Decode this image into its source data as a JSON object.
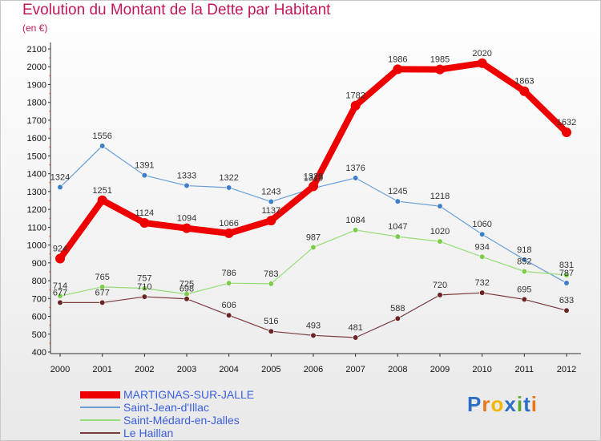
{
  "title": "Evolution du Montant de la Dette par Habitant",
  "subtitle": "(en €)",
  "brand": {
    "text": "Proxiti",
    "letter_colors": [
      "#2d6fc7",
      "#e8791a",
      "#f2b705",
      "#2d6fc7",
      "#5aa832",
      "#2d6fc7",
      "#e8791a"
    ]
  },
  "chart_data": {
    "type": "line",
    "x": [
      "2000",
      "2001",
      "2002",
      "2003",
      "2004",
      "2005",
      "2006",
      "2007",
      "2008",
      "2009",
      "2010",
      "2011",
      "2012"
    ],
    "ylim": [
      400,
      2100
    ],
    "yticks": [
      400,
      500,
      600,
      700,
      800,
      900,
      1000,
      1100,
      1200,
      1300,
      1400,
      1500,
      1600,
      1700,
      1800,
      1900,
      2000,
      2100
    ],
    "grid": false,
    "legend_position": "bottom-left",
    "series": [
      {
        "name": "MARTIGNAS-SUR-JALLE",
        "color": "#ee0000",
        "line_width": 8,
        "marker_radius": 6,
        "values": [
          924,
          1251,
          1124,
          1094,
          1066,
          1137,
          1329,
          1782,
          1986,
          1985,
          2020,
          1863,
          1632
        ]
      },
      {
        "name": "Saint-Jean-d'Illac",
        "color": "#6a9fd8",
        "marker_fill": "#3f7fc9",
        "line_width": 1.2,
        "marker_radius": 3.3,
        "values": [
          1324,
          1556,
          1391,
          1333,
          1322,
          1243,
          1319,
          1376,
          1245,
          1218,
          1060,
          918,
          787
        ]
      },
      {
        "name": "Saint-Médard-en-Jalles",
        "color": "#95dd77",
        "marker_fill": "#7ccb4a",
        "line_width": 1.2,
        "marker_radius": 3.3,
        "values": [
          714,
          765,
          757,
          725,
          786,
          783,
          987,
          1084,
          1047,
          1020,
          934,
          852,
          831
        ]
      },
      {
        "name": "Le Haillan",
        "color": "#7a3a3a",
        "marker_fill": "#6b2424",
        "line_width": 1.2,
        "marker_radius": 3.3,
        "values": [
          677,
          677,
          710,
          698,
          606,
          516,
          493,
          481,
          588,
          720,
          732,
          695,
          633
        ]
      }
    ],
    "data_labels": [
      {
        "series": 0,
        "text": [
          "924",
          "1251",
          "1124",
          "1094",
          "1066",
          "1137",
          "1329",
          "1782",
          "1986",
          "1985",
          "2020",
          "1863",
          "1632"
        ]
      },
      {
        "series": 1,
        "text": [
          "1324",
          "1556",
          "1391",
          "1333",
          "1322",
          "1243",
          "1319",
          "1376",
          "1245",
          "1218",
          "1060",
          "918",
          "787"
        ]
      },
      {
        "series": 2,
        "text": [
          "714",
          "765",
          "757",
          "725",
          "786",
          "783",
          "987",
          "1084",
          "1047",
          "1020",
          "934",
          "852",
          "831"
        ]
      },
      {
        "series": 3,
        "text": [
          "677",
          "677",
          "710",
          "698",
          "606",
          "516",
          "493",
          "481",
          "588",
          "720",
          "732",
          "695",
          "633"
        ]
      }
    ]
  }
}
